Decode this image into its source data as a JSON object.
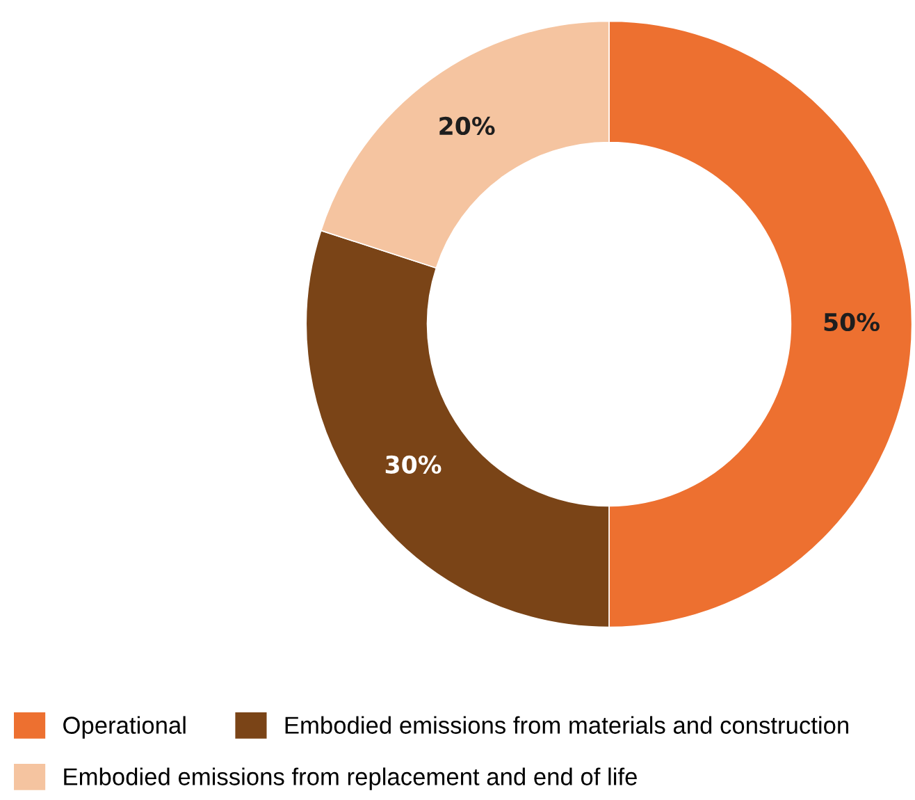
{
  "chart_data": {
    "type": "donut",
    "categories": [
      "Operational",
      "Embodied emissions from materials and construction",
      "Embodied emissions from replacement and end of life"
    ],
    "values": [
      50,
      30,
      20
    ],
    "colors": [
      "#ed7030",
      "#7a4417",
      "#f5c4a0"
    ],
    "value_labels": [
      "50%",
      "30%",
      "20%"
    ],
    "legend": "bottom"
  }
}
